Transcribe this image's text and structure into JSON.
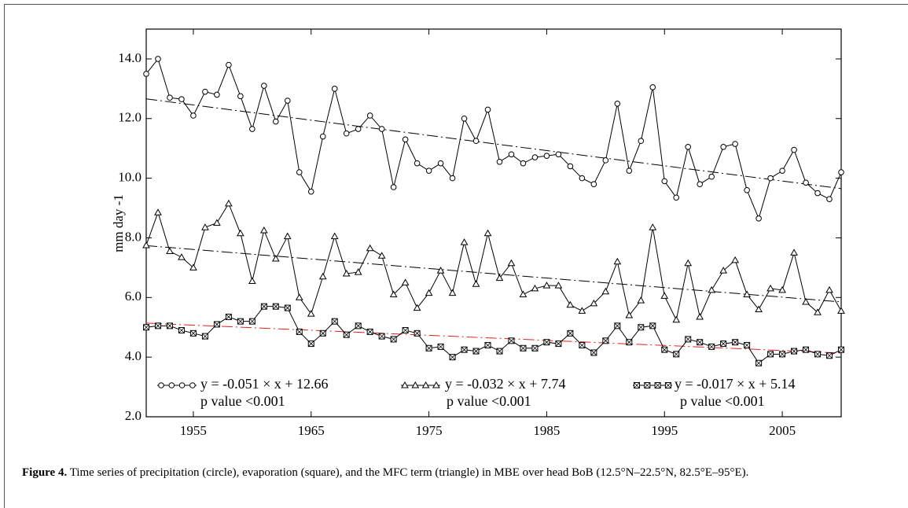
{
  "chart_data": {
    "type": "line",
    "ylabel": "mm day -1",
    "x": [
      1951,
      1952,
      1953,
      1954,
      1955,
      1956,
      1957,
      1958,
      1959,
      1960,
      1961,
      1962,
      1963,
      1964,
      1965,
      1966,
      1967,
      1968,
      1969,
      1970,
      1971,
      1972,
      1973,
      1974,
      1975,
      1976,
      1977,
      1978,
      1979,
      1980,
      1981,
      1982,
      1983,
      1984,
      1985,
      1986,
      1987,
      1988,
      1989,
      1990,
      1991,
      1992,
      1993,
      1994,
      1995,
      1996,
      1997,
      1998,
      1999,
      2000,
      2001,
      2002,
      2003,
      2004,
      2005,
      2006,
      2007,
      2008,
      2009,
      2010
    ],
    "xlim": [
      1951,
      2010
    ],
    "xticks": [
      1955,
      1965,
      1975,
      1985,
      1995,
      2005
    ],
    "ylim": [
      2,
      15
    ],
    "yticks": [
      {
        "value": 2,
        "label": "2.0"
      },
      {
        "value": 4,
        "label": "4.0"
      },
      {
        "value": 6,
        "label": "6.0"
      },
      {
        "value": 8,
        "label": "8.0"
      },
      {
        "value": 10,
        "label": "10.0"
      },
      {
        "value": 12,
        "label": "12.0"
      },
      {
        "value": 14,
        "label": "14.0"
      }
    ],
    "series": [
      {
        "marker": "circle",
        "color": "#000000",
        "trend_color": "#000000",
        "legend": "y = -0.051 × x + 12.66",
        "pvalue": "p value <0.001",
        "slope": -0.051,
        "intercept": 12.66,
        "values": [
          13.5,
          14.0,
          12.7,
          12.65,
          12.1,
          12.9,
          12.8,
          13.8,
          12.75,
          11.65,
          13.1,
          11.9,
          12.6,
          10.2,
          9.55,
          11.4,
          13.0,
          11.5,
          11.65,
          12.1,
          11.65,
          9.7,
          11.3,
          10.5,
          10.25,
          10.5,
          10.0,
          12.0,
          11.25,
          12.3,
          10.55,
          10.8,
          10.5,
          10.7,
          10.75,
          10.8,
          10.4,
          10.0,
          9.8,
          10.6,
          12.5,
          10.25,
          11.25,
          13.05,
          9.9,
          9.35,
          11.05,
          9.8,
          10.05,
          11.05,
          11.15,
          9.6,
          8.65,
          10.0,
          10.25,
          10.95,
          9.85,
          9.5,
          9.3,
          10.2
        ]
      },
      {
        "marker": "triangle",
        "color": "#000000",
        "trend_color": "#000000",
        "legend": "y = -0.032 × x + 7.74",
        "pvalue": "p value <0.001",
        "slope": -0.032,
        "intercept": 7.74,
        "values": [
          7.75,
          8.85,
          7.55,
          7.35,
          7.0,
          8.35,
          8.5,
          9.15,
          8.15,
          6.55,
          8.25,
          7.3,
          8.05,
          6.0,
          5.45,
          6.7,
          8.05,
          6.8,
          6.85,
          7.65,
          7.4,
          6.1,
          6.5,
          5.65,
          6.15,
          6.9,
          6.15,
          7.85,
          6.45,
          8.15,
          6.65,
          7.15,
          6.1,
          6.3,
          6.4,
          6.4,
          5.75,
          5.55,
          5.8,
          6.2,
          7.2,
          5.4,
          5.9,
          8.35,
          6.05,
          5.25,
          7.15,
          5.35,
          6.25,
          6.9,
          7.25,
          6.1,
          5.6,
          6.3,
          6.25,
          7.5,
          5.85,
          5.5,
          6.25,
          5.55
        ]
      },
      {
        "marker": "square",
        "color": "#000000",
        "trend_color": "#e02020",
        "legend": "y = -0.017 × x + 5.14",
        "pvalue": "p value <0.001",
        "slope": -0.017,
        "intercept": 5.14,
        "values": [
          5.0,
          5.05,
          5.05,
          4.9,
          4.8,
          4.7,
          5.1,
          5.35,
          5.2,
          5.2,
          5.7,
          5.7,
          5.65,
          4.85,
          4.45,
          4.8,
          5.2,
          4.75,
          5.05,
          4.85,
          4.7,
          4.6,
          4.9,
          4.8,
          4.3,
          4.35,
          4.0,
          4.25,
          4.2,
          4.4,
          4.2,
          4.55,
          4.3,
          4.3,
          4.5,
          4.45,
          4.8,
          4.4,
          4.15,
          4.55,
          5.05,
          4.5,
          5.0,
          5.05,
          4.25,
          4.1,
          4.6,
          4.5,
          4.35,
          4.45,
          4.5,
          4.4,
          3.8,
          4.1,
          4.1,
          4.2,
          4.25,
          4.1,
          4.05,
          4.25
        ]
      }
    ]
  },
  "caption": {
    "label": "Figure 4.",
    "text": " Time series of precipitation (circle), evaporation (square), and the MFC term (triangle) in MBE over head BoB (12.5°N–22.5°N, 82.5°E–95°E)."
  }
}
